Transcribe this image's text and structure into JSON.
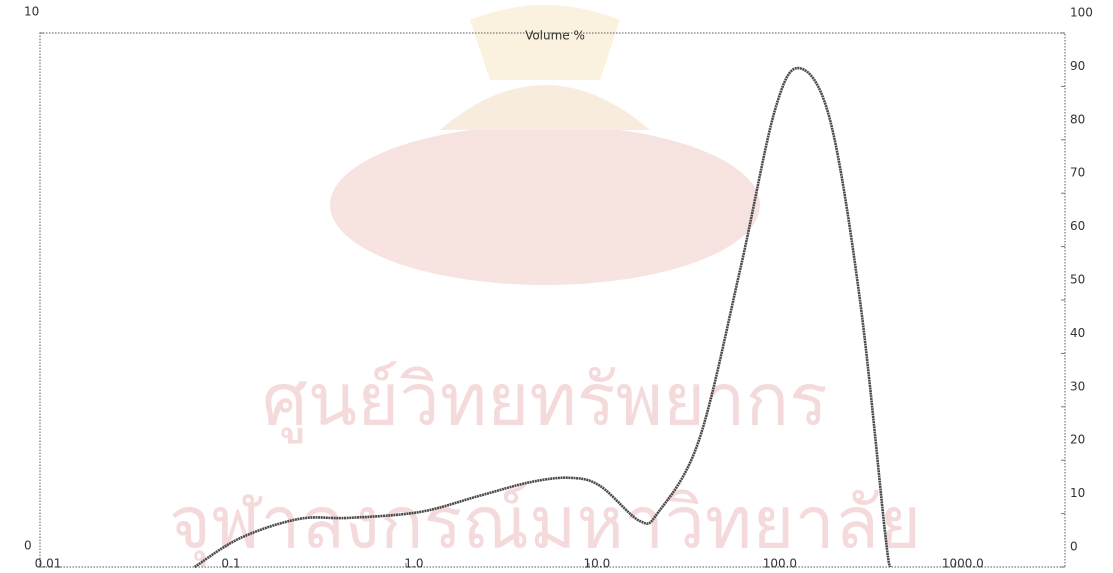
{
  "chart_data": {
    "type": "line",
    "title": "Volume %",
    "watermark": [
      "ศูนย์วิทยทรัพยากร",
      "จุฬาลงกรณ์มหาวิทยาลัย"
    ],
    "log_x": true,
    "x": [
      0.07,
      0.124,
      0.26,
      0.49,
      1.19,
      2.5,
      4.8,
      7.9,
      11.5,
      19,
      24,
      40,
      67,
      104,
      142,
      208,
      303,
      414,
      442
    ],
    "series": [
      {
        "color": "#4a4a4a",
        "values": [
          0,
          0.54,
          0.9,
          0.92,
          1.03,
          1.33,
          1.59,
          1.67,
          1.52,
          0.86,
          1.03,
          2.38,
          5.56,
          8.56,
          9.34,
          8.37,
          5.0,
          0.69,
          0
        ]
      }
    ],
    "xlim": [
      0.01,
      4000
    ],
    "xticks": [
      0.01,
      0.1,
      {
        "value": 1,
        "label": "1.0"
      },
      {
        "value": 10,
        "label": "10.0"
      },
      {
        "value": 100,
        "label": "100.0"
      },
      {
        "value": 1000,
        "label": "1000.0"
      }
    ],
    "ylim": [
      0,
      10
    ],
    "yticks": [
      0,
      10
    ],
    "y2lim": [
      0,
      100
    ],
    "y2ticks": [
      0,
      10,
      20,
      30,
      40,
      50,
      60,
      70,
      80,
      90,
      100
    ],
    "grid": false
  }
}
